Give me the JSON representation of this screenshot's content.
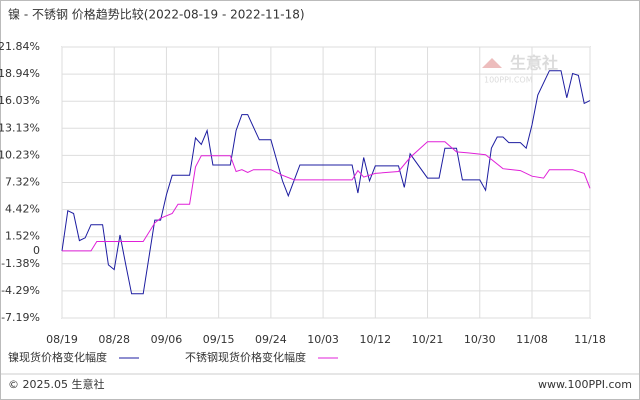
{
  "chart_data": {
    "type": "line",
    "title": "镍 - 不锈钢 价格趋势比较(2022-08-19 - 2022-11-18)",
    "watermark": {
      "name": "生意社",
      "site": "100PPI.COM"
    },
    "footer": {
      "left": "© 2025.05 生意社",
      "right": "www.100PPI.com"
    },
    "xlim": [
      "08/19",
      "11/18"
    ],
    "xticks": [
      "08/19",
      "08/28",
      "09/06",
      "09/15",
      "09/24",
      "10/03",
      "10/12",
      "10/21",
      "10/30",
      "11/08",
      "11/18"
    ],
    "ylim": [
      -7.19,
      21.84
    ],
    "yticks": [
      {
        "value": 21.84,
        "label": "21.84%"
      },
      {
        "value": 18.94,
        "label": "18.94%"
      },
      {
        "value": 16.03,
        "label": "16.03%"
      },
      {
        "value": 13.13,
        "label": "13.13%"
      },
      {
        "value": 10.23,
        "label": "10.23%"
      },
      {
        "value": 7.32,
        "label": "7.32%"
      },
      {
        "value": 4.42,
        "label": "4.42%"
      },
      {
        "value": 1.52,
        "label": "1.52%"
      },
      0,
      {
        "value": -1.38,
        "label": "-1.38%"
      },
      {
        "value": -4.29,
        "label": "-4.29%"
      },
      {
        "value": -7.19,
        "label": "-7.19%"
      }
    ],
    "grid": true,
    "series": [
      {
        "name": "镍现货价格变化幅度",
        "color": "#1c1ca0",
        "x": [
          "08/19",
          "08/20",
          "08/21",
          "08/22",
          "08/23",
          "08/24",
          "08/26",
          "08/27",
          "08/28",
          "08/29",
          "08/30",
          "08/31",
          "09/02",
          "09/04",
          "09/05",
          "09/06",
          "09/07",
          "09/10",
          "09/11",
          "09/12",
          "09/13",
          "09/14",
          "09/17",
          "09/18",
          "09/19",
          "09/20",
          "09/22",
          "09/24",
          "09/26",
          "09/27",
          "09/29",
          "10/08",
          "10/09",
          "10/10",
          "10/11",
          "10/12",
          "10/16",
          "10/17",
          "10/18",
          "10/21",
          "10/23",
          "10/24",
          "10/26",
          "10/27",
          "10/30",
          "10/31",
          "11/01",
          "11/02",
          "11/03",
          "11/04",
          "11/06",
          "11/07",
          "11/08",
          "11/09",
          "11/11",
          "11/13",
          "11/14",
          "11/15",
          "11/16",
          "11/17",
          "11/18"
        ],
        "values": [
          0,
          4.3,
          4.0,
          1.1,
          1.4,
          2.8,
          2.8,
          -1.5,
          -2.0,
          1.7,
          -1.5,
          -4.6,
          -4.6,
          3.3,
          3.3,
          6.0,
          8.1,
          8.1,
          12.1,
          11.4,
          12.9,
          9.2,
          9.2,
          12.9,
          14.6,
          14.6,
          11.9,
          11.9,
          7.5,
          5.9,
          9.2,
          9.2,
          6.2,
          10.0,
          7.5,
          9.1,
          9.1,
          6.8,
          10.4,
          7.8,
          7.8,
          11.0,
          11.0,
          7.6,
          7.6,
          6.5,
          11.0,
          12.2,
          12.2,
          11.6,
          11.6,
          11.0,
          13.5,
          16.7,
          19.3,
          19.3,
          16.4,
          19.0,
          18.8,
          15.8,
          16.1
        ]
      },
      {
        "name": "不锈钢现货价格变化幅度",
        "color": "#e020d8",
        "x": [
          "08/19",
          "08/24",
          "08/25",
          "09/02",
          "09/04",
          "09/05",
          "09/07",
          "09/08",
          "09/10",
          "09/11",
          "09/12",
          "09/17",
          "09/18",
          "09/19",
          "09/20",
          "09/21",
          "09/24",
          "09/26",
          "09/28",
          "10/08",
          "10/09",
          "10/10",
          "10/12",
          "10/16",
          "10/18",
          "10/21",
          "10/24",
          "10/26",
          "10/28",
          "10/31",
          "11/03",
          "11/06",
          "11/08",
          "11/10",
          "11/11",
          "11/15",
          "11/17",
          "11/18"
        ],
        "values": [
          0,
          0,
          1.0,
          1.0,
          3.0,
          3.5,
          4.0,
          5.0,
          5.0,
          9.0,
          10.2,
          10.2,
          8.5,
          8.7,
          8.4,
          8.7,
          8.7,
          8.1,
          7.6,
          7.6,
          8.6,
          7.9,
          8.3,
          8.5,
          10.0,
          11.7,
          11.7,
          10.6,
          10.5,
          10.3,
          8.8,
          8.6,
          8.0,
          7.8,
          8.7,
          8.7,
          8.3,
          6.7
        ]
      }
    ]
  }
}
